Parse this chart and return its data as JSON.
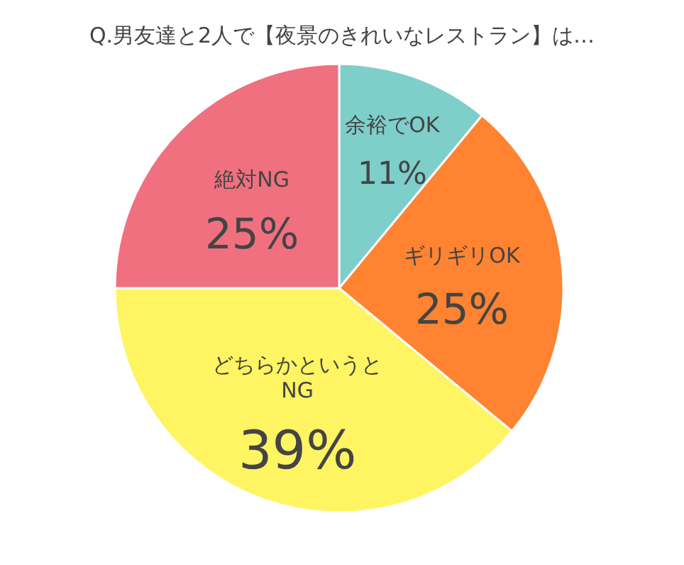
{
  "chart_data": {
    "type": "pie",
    "title": "Q.男友達と2人で【夜景のきれいなレストラン】は…",
    "categories": [
      "余裕でOK",
      "ギリギリOK",
      "どちらかというとNG",
      "絶対NG"
    ],
    "values": [
      11,
      25,
      39,
      25
    ],
    "colors": [
      "#7ececa",
      "#ff8330",
      "#fff462",
      "#f07080"
    ],
    "value_labels": [
      "11%",
      "25%",
      "39%",
      "25%"
    ]
  }
}
